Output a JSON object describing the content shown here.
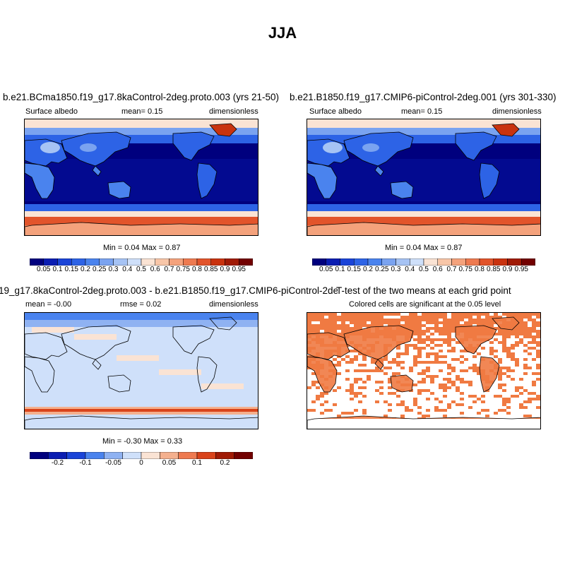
{
  "figure": {
    "title": "JJA",
    "colors": {
      "albedo_scale": [
        "#00007e",
        "#0a1db2",
        "#1a44d8",
        "#2d63e6",
        "#4a83ee",
        "#7aa3f0",
        "#a6c3f4",
        "#cfe0fa",
        "#fae3d4",
        "#f8c6a8",
        "#f4a27c",
        "#ee7a50",
        "#e2542b",
        "#c9330f",
        "#a01a05",
        "#720000"
      ],
      "diff_scale": [
        "#00007e",
        "#0a1db2",
        "#1a44d8",
        "#4a83ee",
        "#8fb2f2",
        "#cfe0fa",
        "#fae3d4",
        "#f4b08e",
        "#ee7a50",
        "#d9431a",
        "#a01a05",
        "#720000"
      ],
      "significant": "#f07a42",
      "land_outline": "#000000"
    }
  },
  "panels": {
    "p1": {
      "title": "b.e21.BCma1850.f19_g17.8kaControl-2deg.proto.003 (yrs 21-50)",
      "left": "Surface albedo",
      "center": "mean=   0.15",
      "right": "dimensionless",
      "minmax": "Min =   0.04 Max =   0.87"
    },
    "p2": {
      "title": "b.e21.B1850.f19_g17.CMIP6-piControl-2deg.001 (yrs 301-330)",
      "left": "Surface albedo",
      "center": "mean=   0.15",
      "right": "dimensionless",
      "minmax": "Min =   0.04 Max =   0.87"
    },
    "p3": {
      "title": "19_g17.8kaControl-2deg.proto.003 - b.e21.B1850.f19_g17.CMIP6-piControl-2deg.001",
      "left": "mean = -0.00",
      "center": "rmse =   0.02",
      "right": "dimensionless",
      "minmax": "Min =  -0.30 Max =   0.33"
    },
    "p4": {
      "title": "T-test of the two means at each grid point",
      "subtitle": "Colored cells are significant at the 0.05 level"
    }
  },
  "colorbars": {
    "albedo_labels": [
      "0.05",
      "0.1",
      "0.15",
      "0.2",
      "0.25",
      "0.3",
      "0.4",
      "0.5",
      "0.6",
      "0.7",
      "0.75",
      "0.8",
      "0.85",
      "0.9",
      "0.95"
    ],
    "diff_labels": [
      "-0.2",
      "-0.1",
      "-0.05",
      "0",
      "0.05",
      "0.1",
      "0.2"
    ]
  }
}
